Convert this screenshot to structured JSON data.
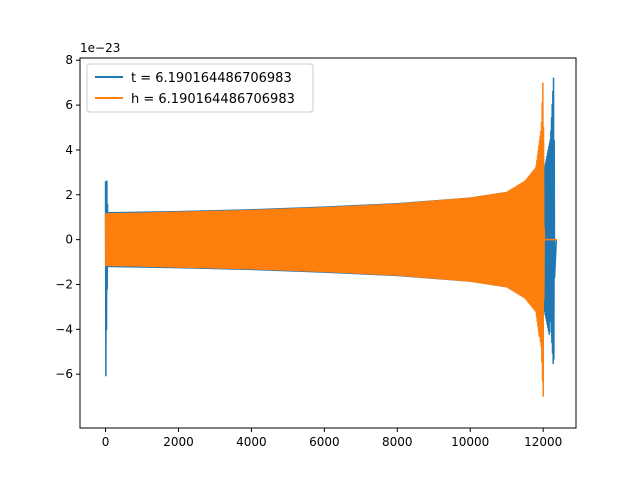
{
  "chart_data": {
    "type": "line",
    "title": "",
    "xlabel": "",
    "ylabel": "",
    "y_offset_label": "1e−23",
    "xlim": [
      -700,
      12900
    ],
    "ylim": [
      -8.4,
      8.1
    ],
    "x_ticks": [
      0,
      2000,
      4000,
      6000,
      8000,
      10000,
      12000
    ],
    "x_tick_labels": [
      "0",
      "2000",
      "4000",
      "6000",
      "8000",
      "10000",
      "12000"
    ],
    "y_ticks": [
      -6,
      -4,
      -2,
      0,
      2,
      4,
      6,
      8
    ],
    "y_tick_labels": [
      "−6",
      "−4",
      "−2",
      "0",
      "2",
      "4",
      "6",
      "8"
    ],
    "grid": false,
    "legend_position": "top-left",
    "series": [
      {
        "name": "t = 6.190164486706983",
        "color": "#1f77b4",
        "description": "chirp waveform: ringing near x=0 (peaks 2.6 / -7.1), main chirp envelope ~1.2 growing to 7.4 at merger x~12300",
        "envelope_x": [
          0,
          40,
          60,
          100,
          2000,
          4000,
          6000,
          8000,
          10000,
          11000,
          11600,
          12000,
          12200,
          12290,
          12320
        ],
        "envelope_y": [
          7.1,
          2.6,
          1.2,
          1.2,
          1.25,
          1.33,
          1.45,
          1.6,
          1.85,
          2.1,
          2.4,
          2.9,
          4.5,
          7.4,
          0.0
        ]
      },
      {
        "name": "h = 6.190164486706983",
        "color": "#ff7f0e",
        "description": "chirp waveform: envelope ~1.15 at start growing to 7.4 at merger x~12000, then zero",
        "envelope_x": [
          0,
          1000,
          2000,
          4000,
          6000,
          8000,
          10000,
          11000,
          11500,
          11800,
          11950,
          12000,
          12030,
          12330
        ],
        "envelope_y": [
          1.15,
          1.18,
          1.22,
          1.3,
          1.42,
          1.58,
          1.85,
          2.1,
          2.6,
          3.2,
          5.0,
          7.4,
          0.0,
          0.0
        ]
      }
    ]
  }
}
